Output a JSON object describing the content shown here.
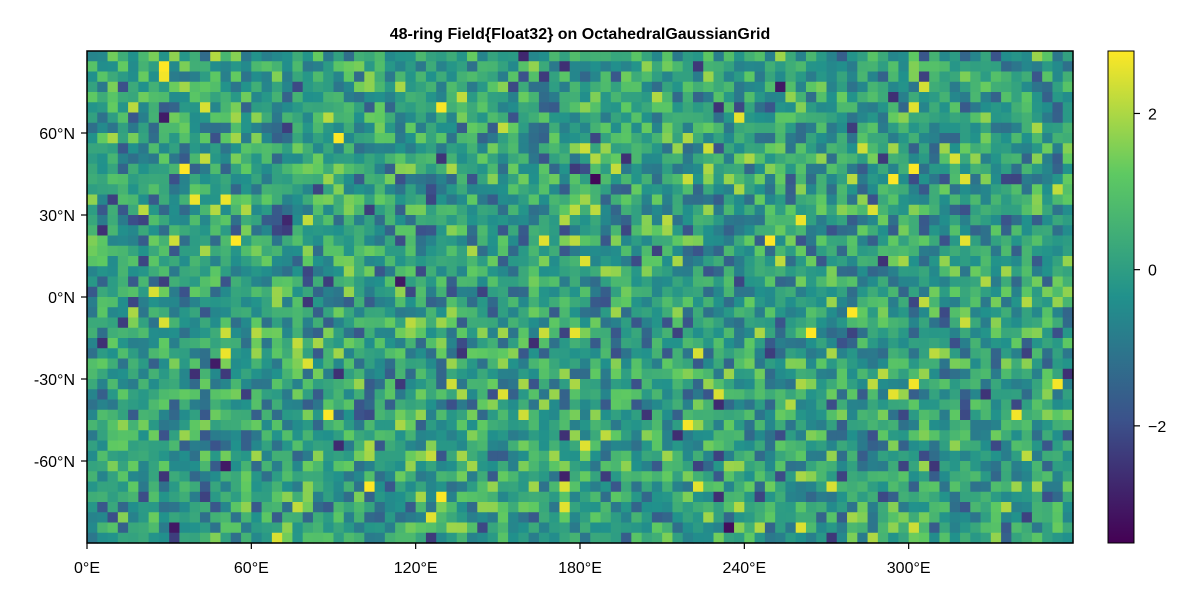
{
  "chart_data": {
    "type": "heatmap",
    "title": "48-ring Field{Float32} on OctahedralGaussianGrid",
    "xlabel": "",
    "ylabel": "",
    "colormap": "viridis",
    "colormap_stops": [
      "#440154",
      "#3b528b",
      "#21918c",
      "#5ec962",
      "#fde725"
    ],
    "frame_color": "#000000",
    "x_range": [
      0,
      360
    ],
    "y_range": [
      -90,
      90
    ],
    "x_ticks": [
      0,
      60,
      120,
      180,
      240,
      300
    ],
    "x_tick_labels": [
      "0°E",
      "60°E",
      "120°E",
      "180°E",
      "240°E",
      "300°E"
    ],
    "y_ticks": [
      60,
      30,
      0,
      -30,
      -60
    ],
    "y_tick_labels": [
      "60°N",
      "30°N",
      "0°N",
      "-30°N",
      "-60°N"
    ],
    "grid": false,
    "grid_cells": {
      "longitude_count": 96,
      "latitude_rings": 48
    },
    "value_distribution": "random field, approximately standard normal",
    "colorbar": {
      "range": [
        -3.5,
        2.8
      ],
      "ticks": [
        2,
        0,
        -2
      ],
      "tick_labels": [
        "2",
        "0",
        "−2"
      ],
      "placement": "right"
    }
  }
}
